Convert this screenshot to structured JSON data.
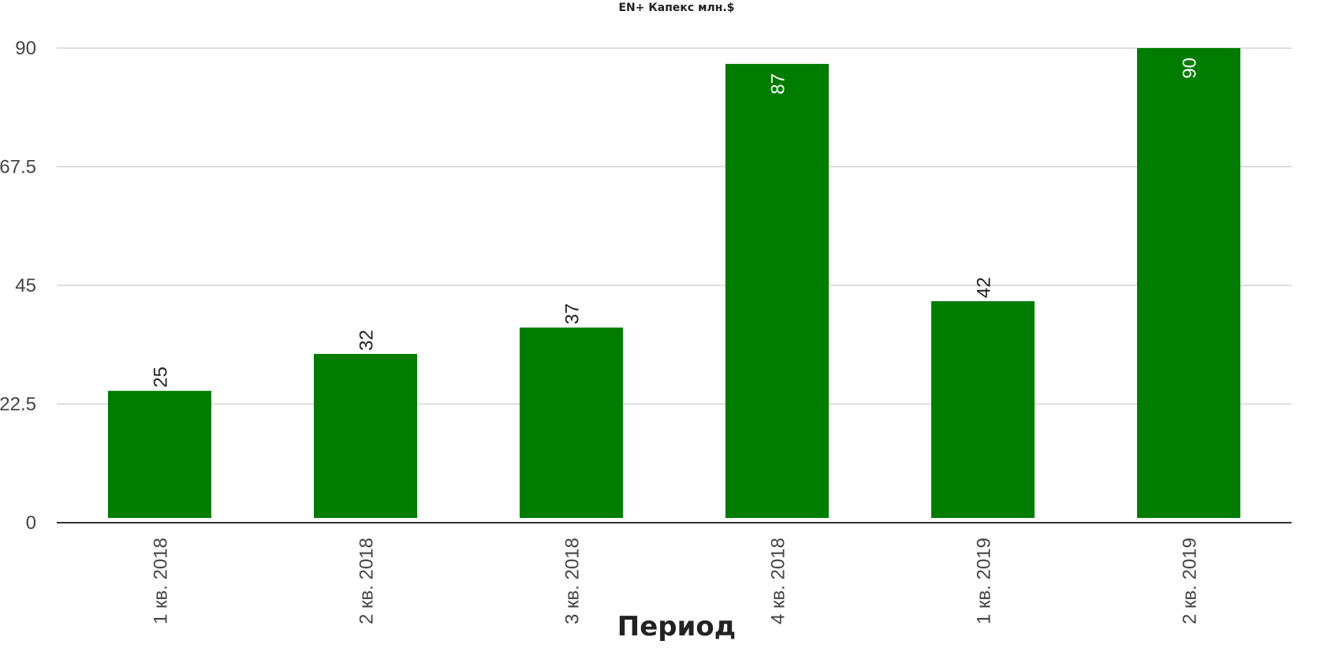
{
  "chart_data": {
    "type": "bar",
    "title": "EN+ Капекс млн.$",
    "xlabel": "Период",
    "ylabel": "",
    "categories": [
      "1 кв. 2018",
      "2 кв. 2018",
      "3 кв. 2018",
      "4 кв. 2018",
      "1 кв. 2019",
      "2 кв. 2019"
    ],
    "values": [
      25,
      32,
      37,
      87,
      42,
      90
    ],
    "data_labels": [
      "25",
      "32",
      "37",
      "87",
      "42",
      "90"
    ],
    "ylim": [
      0,
      90
    ],
    "yticks": [
      0,
      22.5,
      45,
      67.5,
      90
    ],
    "ytick_labels": [
      "0",
      "22.5",
      "45",
      "67.5",
      "90"
    ],
    "grid": true,
    "legend": "none",
    "colors": {
      "bar": "#007c00",
      "grid": "#cccccc",
      "axis": "#333333",
      "label": "#222222",
      "label_inside": "#ffffff"
    }
  }
}
